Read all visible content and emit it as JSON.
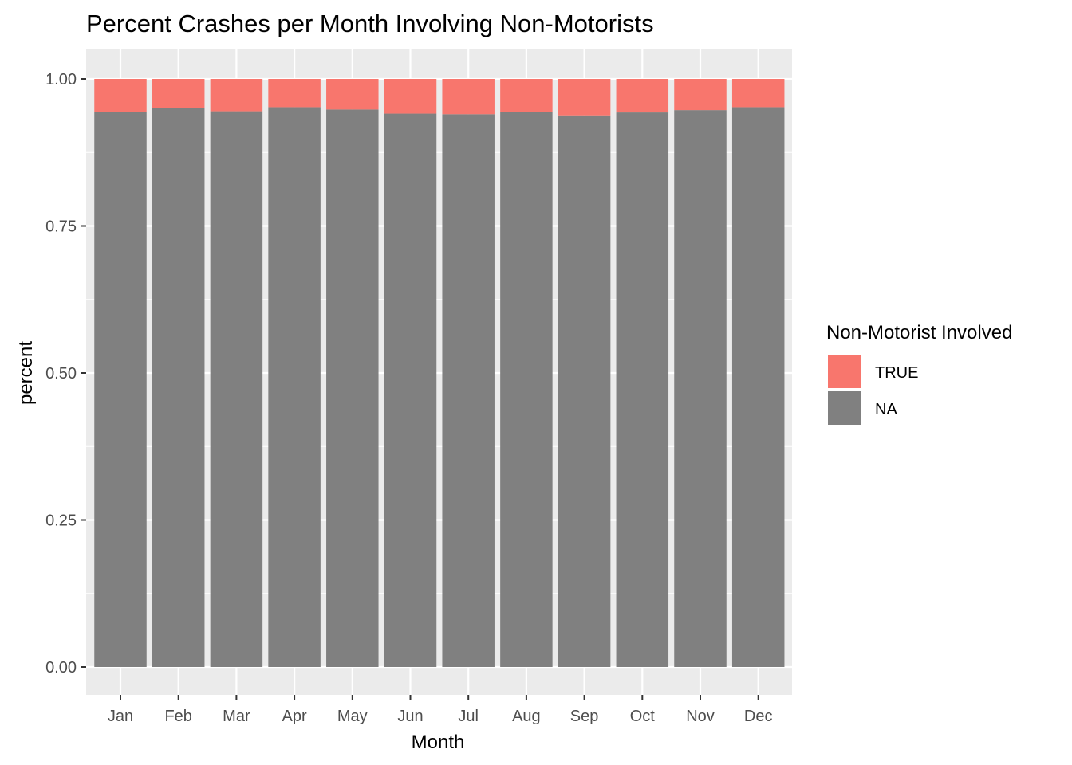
{
  "chart_data": {
    "type": "bar",
    "stacked": true,
    "title": "Percent Crashes per Month Involving Non-Motorists",
    "xlabel": "Month",
    "ylabel": "percent",
    "categories": [
      "Jan",
      "Feb",
      "Mar",
      "Apr",
      "May",
      "Jun",
      "Jul",
      "Aug",
      "Sep",
      "Oct",
      "Nov",
      "Dec"
    ],
    "ylim": [
      0,
      1
    ],
    "yticks": [
      0,
      0.25,
      0.5,
      0.75,
      1
    ],
    "ytick_labels": [
      "0.00",
      "0.25",
      "0.50",
      "0.75",
      "1.00"
    ],
    "grid": true,
    "legend": {
      "title": "Non-Motorist Involved",
      "position": "right"
    },
    "series": [
      {
        "name": "NA",
        "color": "#808080",
        "values": [
          0.944,
          0.951,
          0.945,
          0.952,
          0.948,
          0.941,
          0.94,
          0.944,
          0.938,
          0.943,
          0.947,
          0.952
        ]
      },
      {
        "name": "TRUE",
        "color": "#F8766D",
        "values": [
          0.056,
          0.049,
          0.055,
          0.048,
          0.052,
          0.059,
          0.06,
          0.056,
          0.062,
          0.057,
          0.053,
          0.048
        ]
      }
    ],
    "legend_order": [
      "TRUE",
      "NA"
    ],
    "panel_background": "#EBEBEB",
    "gridline_color": "#FFFFFF"
  }
}
